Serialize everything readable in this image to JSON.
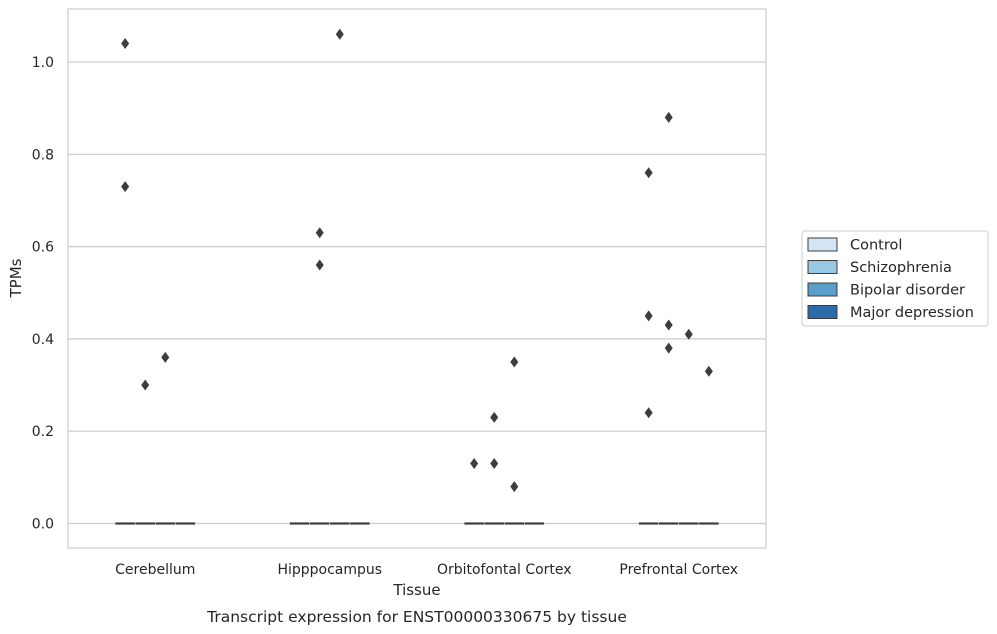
{
  "chart_data": {
    "type": "boxplot",
    "title": "",
    "caption": "Transcript expression for ENST00000330675 by tissue",
    "xlabel": "Tissue",
    "ylabel": "TPMs",
    "ylim": [
      -0.05,
      1.115
    ],
    "yticks": [
      0.0,
      0.2,
      0.4,
      0.6,
      0.8,
      1.0
    ],
    "ytick_labels": [
      "0.0",
      "0.2",
      "0.4",
      "0.6",
      "0.8",
      "1.0"
    ],
    "grid": true,
    "legend_position": "outside-right",
    "categories": [
      "Cerebellum",
      "Hipppocampus",
      "Orbitofontal Cortex",
      "Prefrontal Cortex"
    ],
    "series": [
      {
        "name": "Control",
        "color": "#d3e4f3",
        "medians": [
          0,
          0,
          0,
          0
        ],
        "outliers": [
          [
            1.04,
            0.73
          ],
          [],
          [
            0.13
          ],
          [
            0.76,
            0.45,
            0.24
          ]
        ]
      },
      {
        "name": "Schizophrenia",
        "color": "#9ac8e0",
        "medians": [
          0,
          0,
          0,
          0
        ],
        "outliers": [
          [
            0.3
          ],
          [
            0.63,
            0.56
          ],
          [
            0.23,
            0.13
          ],
          [
            0.88,
            0.43,
            0.38
          ]
        ]
      },
      {
        "name": "Bipolar disorder",
        "color": "#5a9fcb",
        "medians": [
          0,
          0,
          0,
          0
        ],
        "outliers": [
          [
            0.36
          ],
          [
            1.06
          ],
          [
            0.35,
            0.08
          ],
          [
            0.41
          ]
        ]
      },
      {
        "name": "Major depression",
        "color": "#2b6ca8",
        "medians": [
          0,
          0,
          0,
          0
        ],
        "outliers": [
          [],
          [],
          [],
          [
            0.33
          ]
        ]
      }
    ]
  }
}
